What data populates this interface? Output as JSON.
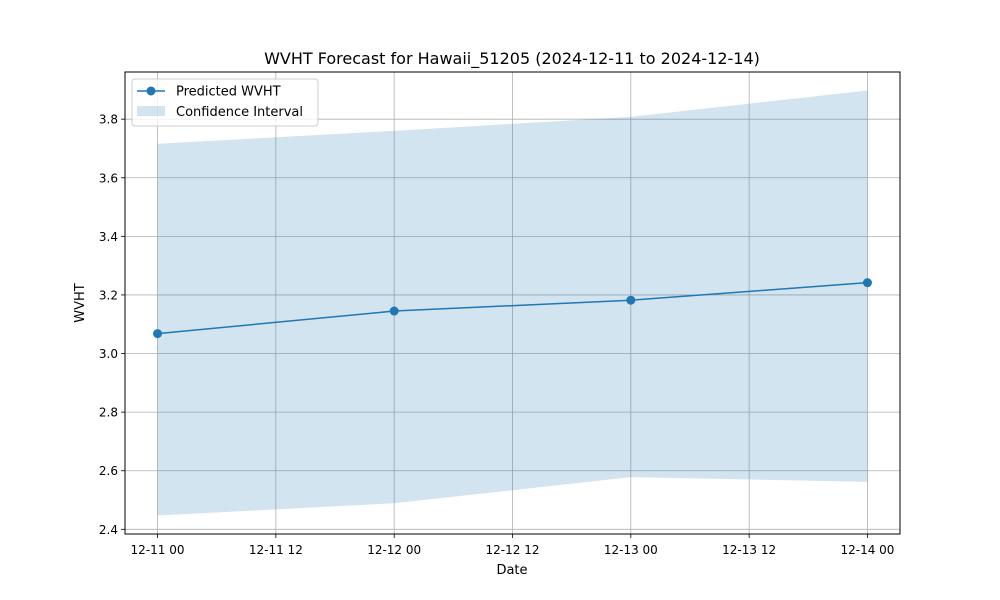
{
  "chart_data": {
    "type": "line",
    "title": "WVHT Forecast for Hawaii_51205 (2024-12-11 to 2024-12-14)",
    "xlabel": "Date",
    "ylabel": "WVHT",
    "x": [
      "2024-12-11 00:00",
      "2024-12-12 00:00",
      "2024-12-13 00:00",
      "2024-12-14 00:00"
    ],
    "series": [
      {
        "name": "Predicted WVHT",
        "values": [
          3.068,
          3.145,
          3.182,
          3.242
        ],
        "color": "#1f77b4",
        "marker": "circle"
      }
    ],
    "confidence_interval": {
      "name": "Confidence Interval",
      "lower": [
        2.447,
        2.489,
        2.578,
        2.562
      ],
      "upper": [
        3.716,
        3.76,
        3.808,
        3.898
      ],
      "color": "#1f77b4",
      "opacity": 0.2
    },
    "x_ticks": [
      {
        "value": "2024-12-11 00:00",
        "label": "12-11 00"
      },
      {
        "value": "2024-12-11 12:00",
        "label": "12-11 12"
      },
      {
        "value": "2024-12-12 00:00",
        "label": "12-12 00"
      },
      {
        "value": "2024-12-12 12:00",
        "label": "12-12 12"
      },
      {
        "value": "2024-12-13 00:00",
        "label": "12-13 00"
      },
      {
        "value": "2024-12-13 12:00",
        "label": "12-13 12"
      },
      {
        "value": "2024-12-14 00:00",
        "label": "12-14 00"
      }
    ],
    "xlim": [
      "2024-12-10 20:42",
      "2024-12-14 03:18"
    ],
    "y_ticks": [
      2.4,
      2.6,
      2.8,
      3.0,
      3.2,
      3.4,
      3.6,
      3.8
    ],
    "ylim": [
      2.384,
      3.961
    ],
    "grid": true,
    "legend_position": "top-left"
  }
}
